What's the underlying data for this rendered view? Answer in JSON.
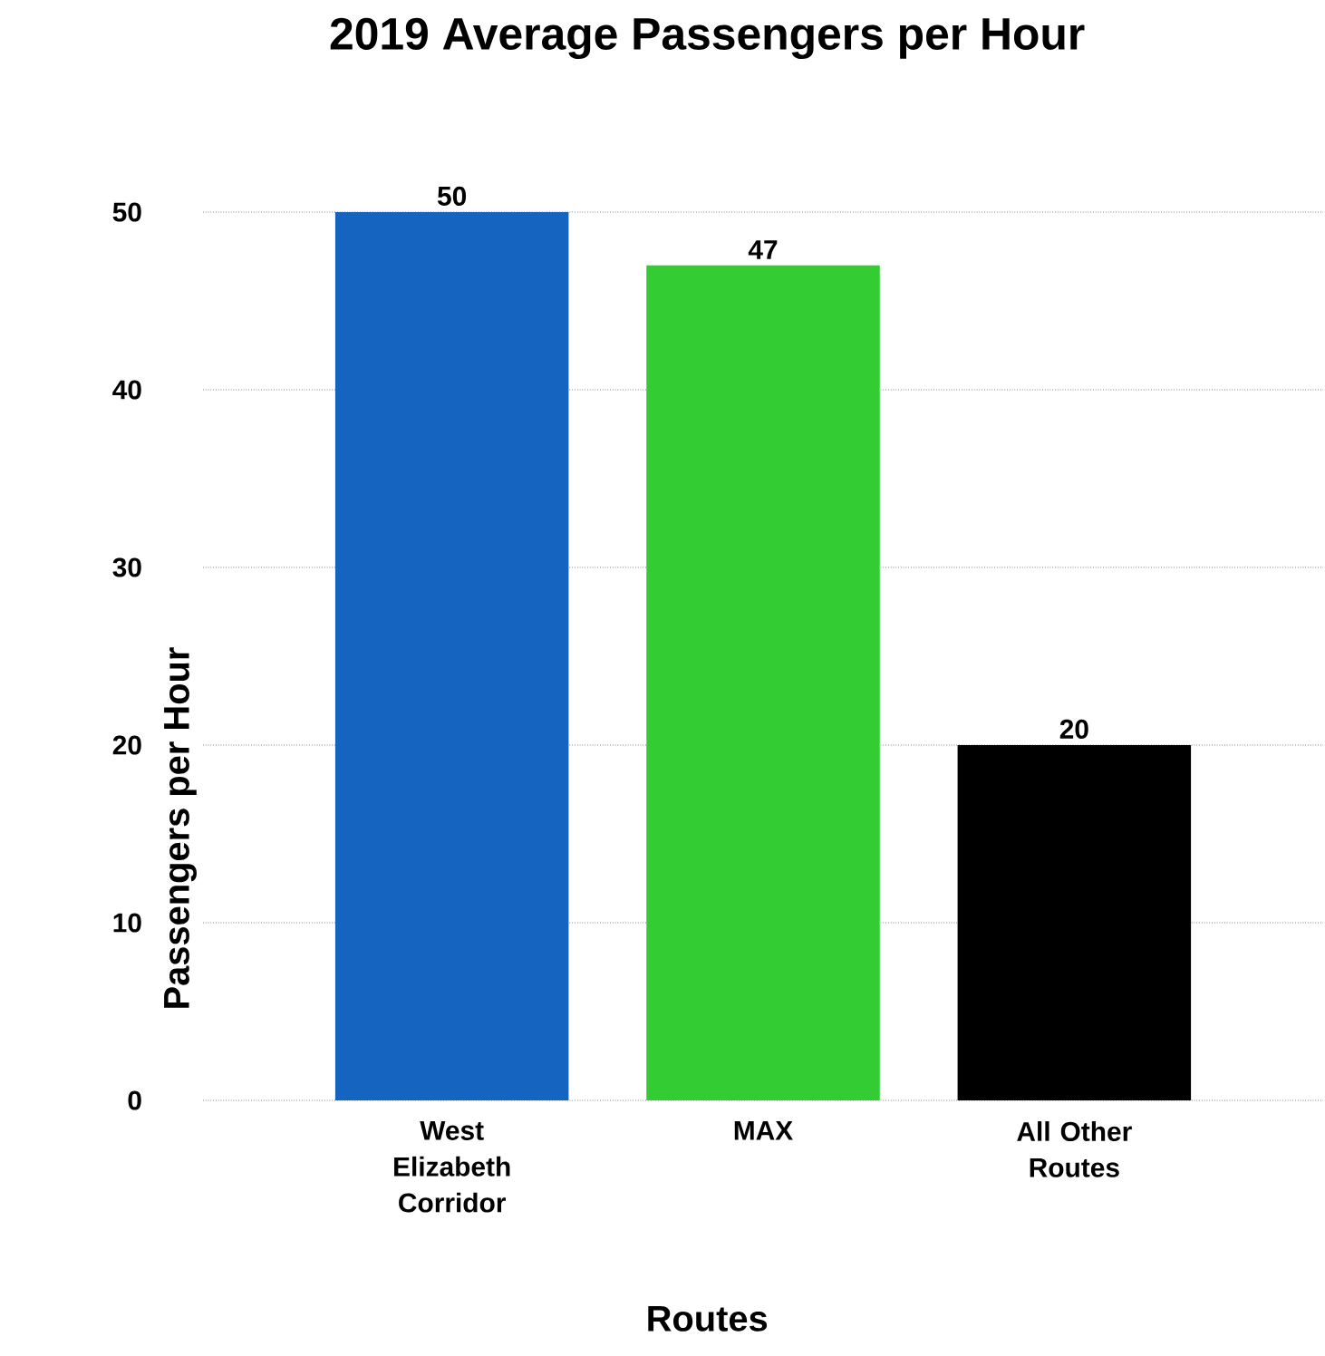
{
  "chart_data": {
    "type": "bar",
    "title": "2019 Average Passengers per Hour",
    "xlabel": "Routes",
    "ylabel": "Passengers per Hour",
    "categories": [
      "West Elizabeth Corridor",
      "MAX",
      "All Other Routes"
    ],
    "values": [
      50,
      47,
      20
    ],
    "colors": [
      "#1565c0",
      "#33cc33",
      "#000000"
    ],
    "ylim": [
      0,
      50
    ],
    "yticks": [
      0,
      10,
      20,
      30,
      40,
      50
    ],
    "grid": "y",
    "data_labels": true
  }
}
